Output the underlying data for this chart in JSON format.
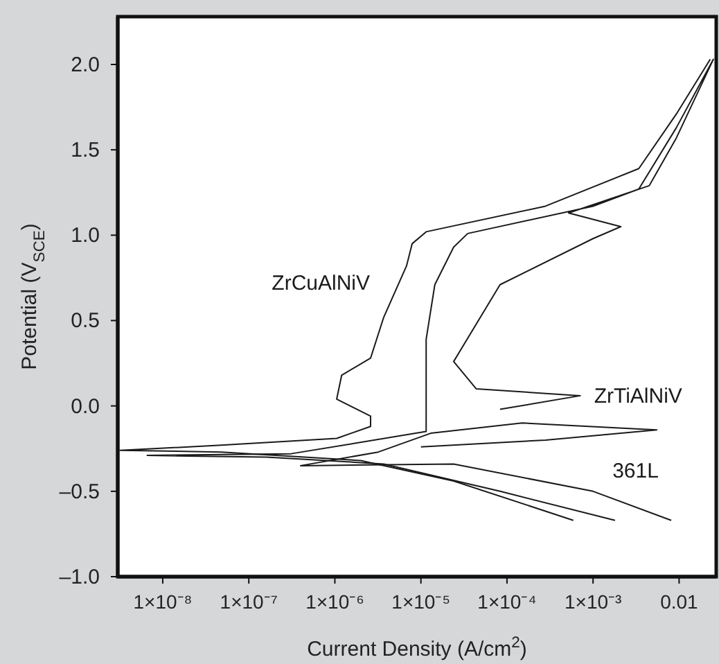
{
  "chart_data": {
    "type": "line",
    "xlabel": "Current Density (A/cm$^{2}$)",
    "ylabel": "Potential (V$_{SCE}$)",
    "log": "x",
    "xlim": [
      3e-09,
      0.027
    ],
    "xticks": [
      {
        "value": 1e-08,
        "label": "1×10⁻⁸"
      },
      {
        "value": 1e-07,
        "label": "1×10⁻⁷"
      },
      {
        "value": 1e-06,
        "label": "1×10⁻⁶"
      },
      {
        "value": 1e-05,
        "label": "1×10⁻⁵"
      },
      {
        "value": 0.0001,
        "label": "1×10⁻⁴"
      },
      {
        "value": 0.001,
        "label": "1×10⁻³"
      },
      0.01
    ],
    "ylim": [
      -1,
      2.28
    ],
    "yticks": [
      {
        "value": -1,
        "label": "–1.0"
      },
      {
        "value": -0.5,
        "label": "–0.5"
      },
      {
        "value": 0,
        "label": "0.0"
      },
      {
        "value": 0.5,
        "label": "0.5"
      },
      {
        "value": 1,
        "label": "1.0"
      },
      {
        "value": 1.5,
        "label": "1.5"
      },
      {
        "value": 2,
        "label": "2.0"
      }
    ],
    "series": [
      {
        "name": "ZrCuAlNiV",
        "color": "#1a1a1a",
        "x": [
          0.00059,
          2.4e-05,
          2e-06,
          4.8e-08,
          3.2e-09,
          4.8e-08,
          1.05e-06,
          2.6e-06,
          2.6e-06,
          1.05e-06,
          1.2e-06,
          2.6e-06,
          3.7e-06,
          6.8e-06,
          7.9e-06,
          1.15e-05,
          0.00028,
          0.0034,
          0.0093,
          0.023
        ],
        "values": [
          -0.67,
          -0.44,
          -0.32,
          -0.27,
          -0.26,
          -0.23,
          -0.19,
          -0.12,
          -0.06,
          0.04,
          0.18,
          0.28,
          0.52,
          0.82,
          0.95,
          1.02,
          1.17,
          1.39,
          1.71,
          2.03
        ]
      },
      {
        "name": "ZrTiAlNiV",
        "color": "#1a1a1a",
        "x": [
          0.0018,
          8.3e-05,
          3.7e-06,
          1.6e-07,
          6.6e-09,
          3.1e-07,
          1.15e-05,
          1.15e-05,
          1.15e-05,
          1.45e-05,
          2.4e-05,
          3.5e-05,
          0.001,
          0.0034,
          0.0093,
          0.025,
          0.0093,
          0.0045,
          0.00052,
          0.0021,
          0.001,
          8.3e-05,
          2.4e-05,
          4.4e-05,
          0.00071,
          8.3e-05
        ],
        "values": [
          -0.67,
          -0.5,
          -0.34,
          -0.3,
          -0.29,
          -0.28,
          -0.15,
          0.12,
          0.39,
          0.71,
          0.93,
          1.01,
          1.17,
          1.27,
          1.63,
          2.03,
          1.57,
          1.29,
          1.13,
          1.05,
          0.98,
          0.71,
          0.26,
          0.1,
          0.06,
          -0.02
        ]
      },
      {
        "name": "361L",
        "color": "#1a1a1a",
        "x": [
          0.0081,
          0.001,
          2.4e-05,
          4e-07,
          3.2e-06,
          1.3e-05,
          0.00015,
          0.0055,
          0.00028,
          1e-05
        ],
        "values": [
          -0.67,
          -0.5,
          -0.34,
          -0.35,
          -0.27,
          -0.16,
          -0.1,
          -0.14,
          -0.2,
          -0.24
        ]
      }
    ]
  }
}
